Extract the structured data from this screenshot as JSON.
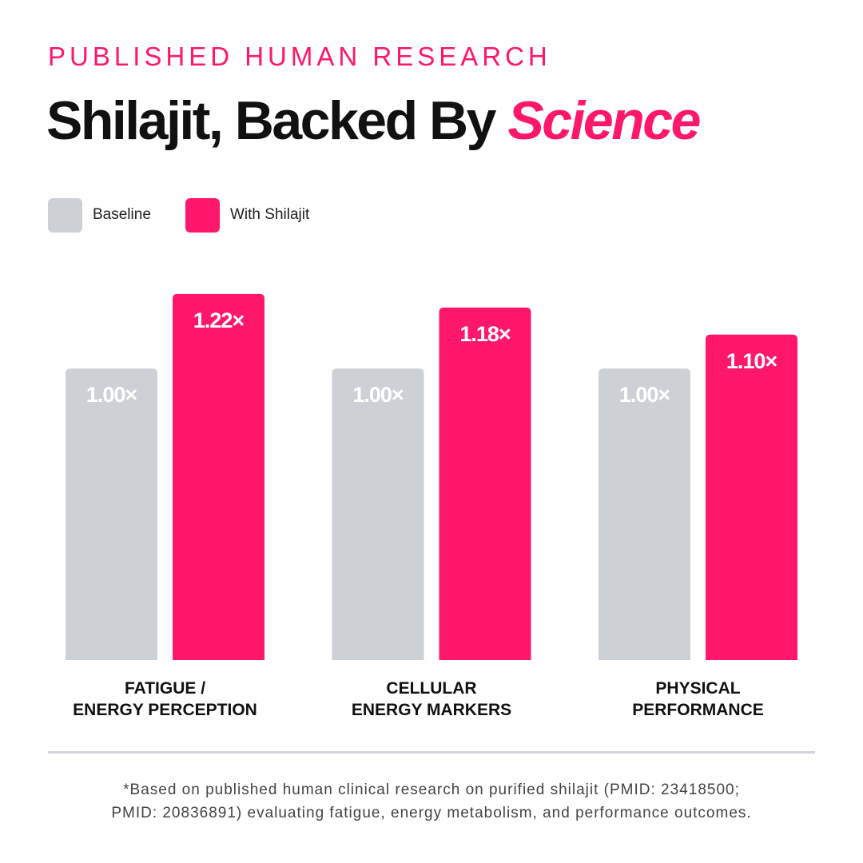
{
  "chart_data": {
    "type": "bar",
    "kicker": "PUBLISHED HUMAN RESEARCH",
    "title": "Shilajit, Backed By",
    "title_emphasis": "Science",
    "categories": [
      "FATIGUE /\nENERGY PERCEPTION",
      "CELLULAR\nENERGY MARKERS",
      "PHYSICAL\nPERFORMANCE"
    ],
    "series": [
      {
        "name": "Baseline",
        "color": "#cdd1d5",
        "values": [
          1.0,
          1.0,
          1.0
        ],
        "value_labels": [
          "1.00×",
          "1.00×",
          "1.00×"
        ]
      },
      {
        "name": "With Shilajit",
        "color": "#ff176b",
        "values": [
          1.22,
          1.18,
          1.1
        ],
        "value_labels": [
          "1.22×",
          "1.18×",
          "1.10×"
        ]
      }
    ],
    "ylim": [
      0.14,
      1.38
    ],
    "footnote": [
      "*Based on published human clinical research on purified shilajit (PMID: 23418500;",
      "PMID: 20836891) evaluating fatigue, energy metabolism, and performance outcomes."
    ]
  }
}
